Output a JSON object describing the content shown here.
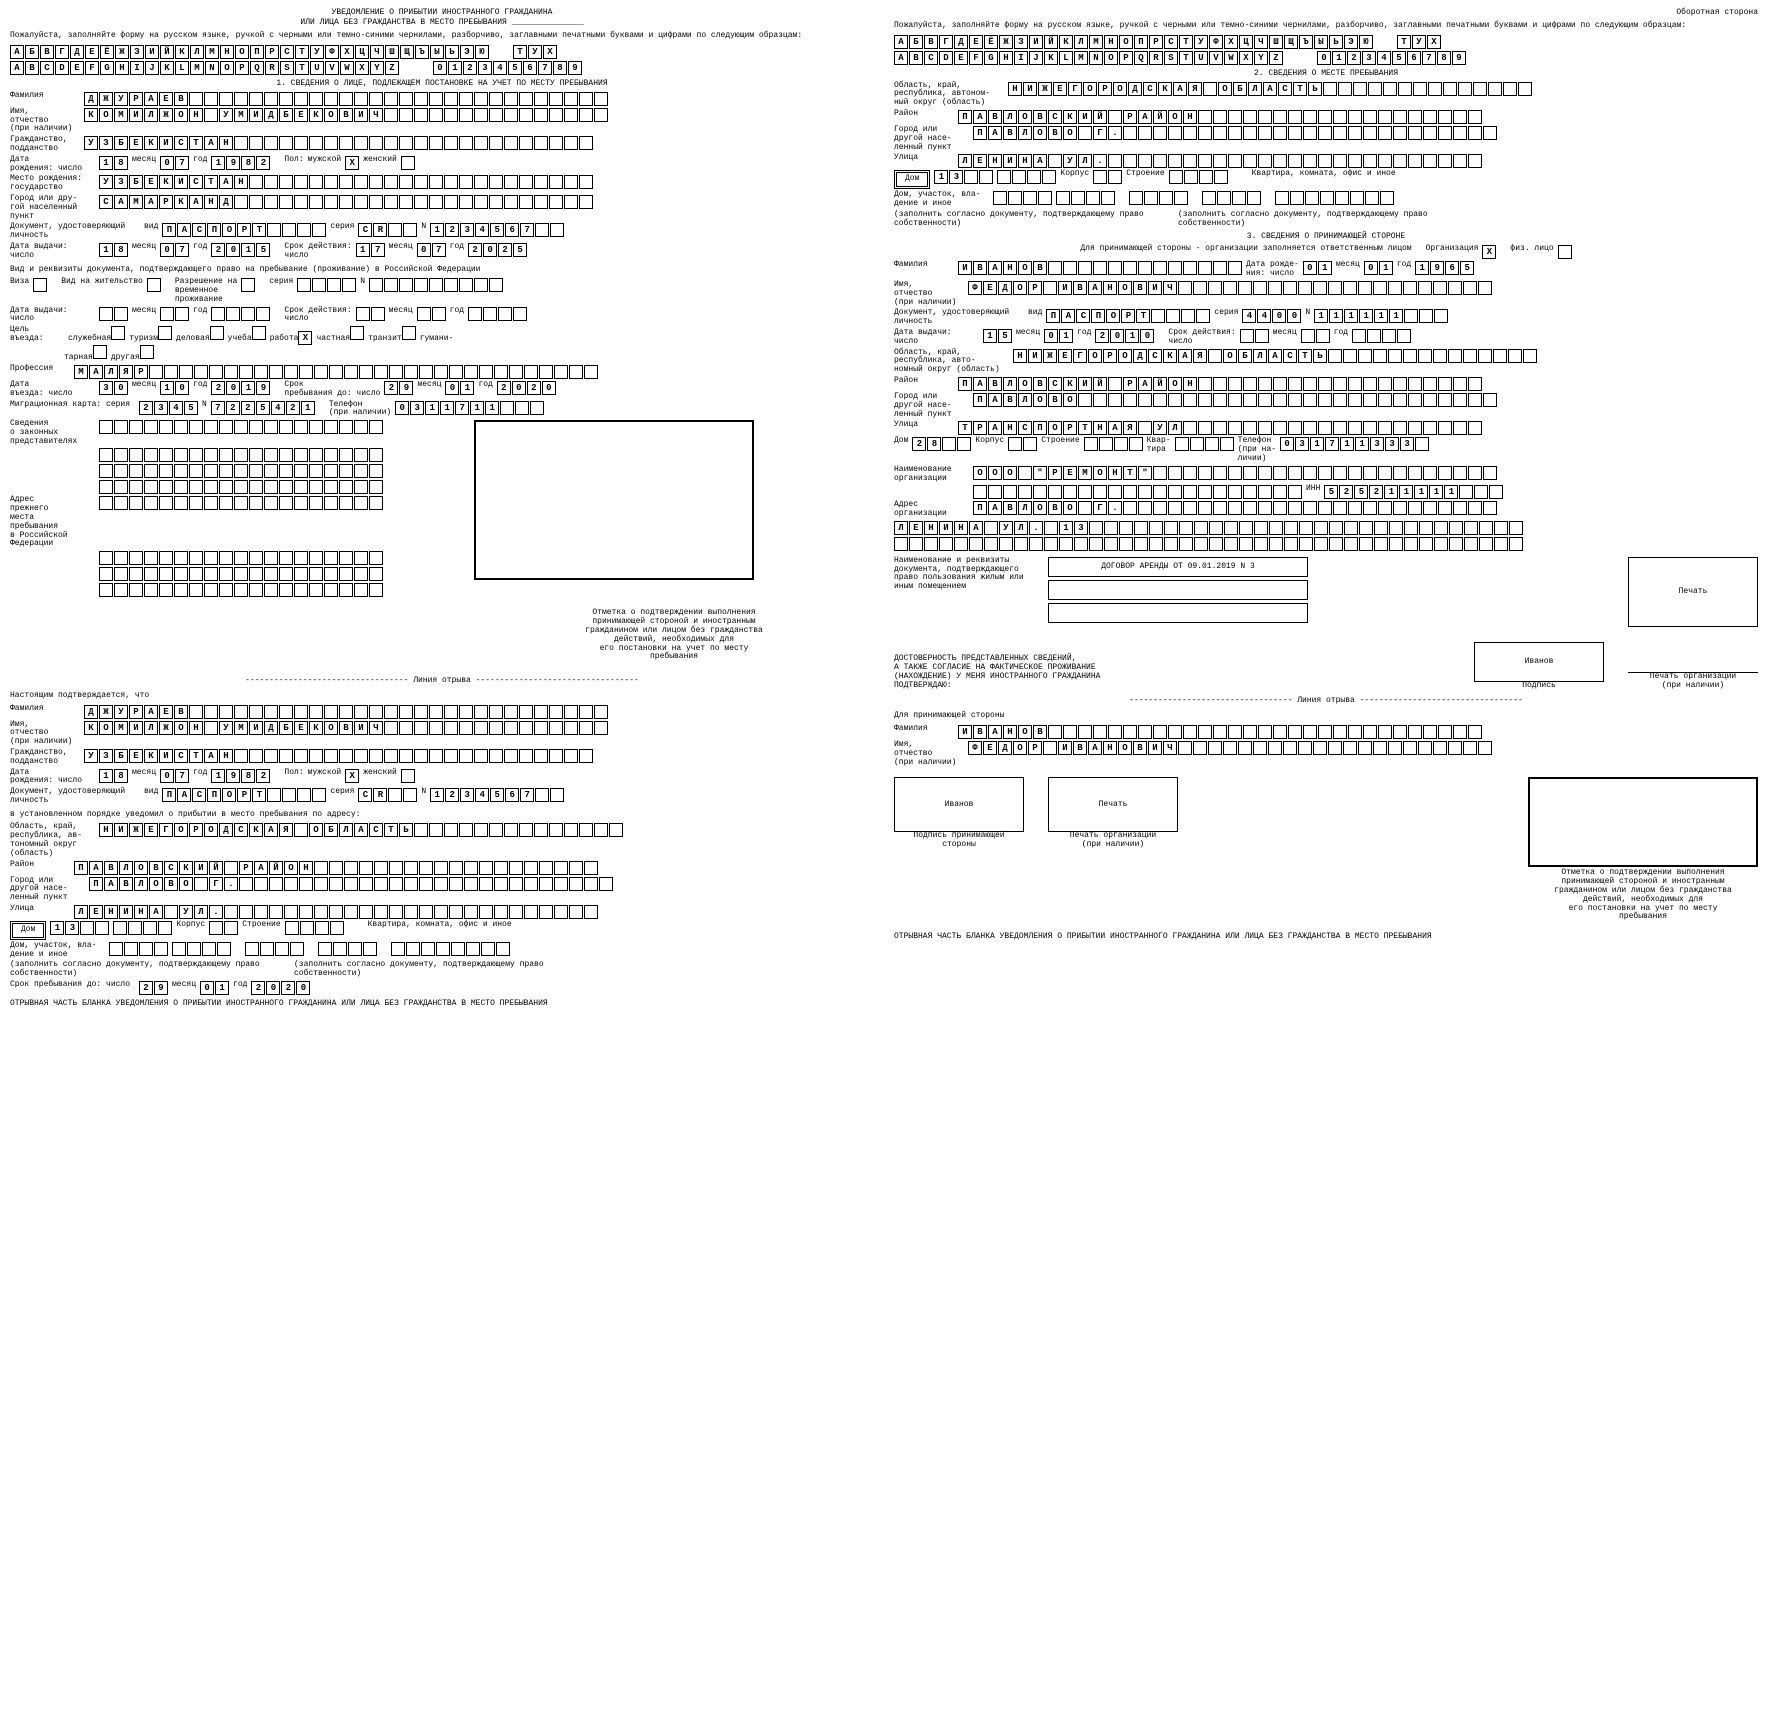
{
  "doc": {
    "title1": "УВЕДОМЛЕНИЕ О ПРИБЫТИИ ИНОСТРАННОГО ГРАЖДАНИНА",
    "title2": "ИЛИ ЛИЦА БЕЗ ГРАЖДАНСТВА В МЕСТО ПРЕБЫВАНИЯ",
    "back_side": "Оборотная сторона",
    "instructions": "Пожалуйста, заполняйте форму на русском языке, ручкой с черными или темно-синими чернилами, разборчиво, заглавными печатными буквами и цифрами по следующим образцам:",
    "sample_ru": "АБВГДЕЁЖЗИЙКЛМНОПРСТУФХЦЧШЩЪЫЬЭЮЯ",
    "sample_en_gap": "ТУХ",
    "sample_en": "ABCDEFGHIJKLMNOPQRSTUVWXYZ",
    "sample_num": "0123456789",
    "section1": "1. СВЕДЕНИЯ О ЛИЦЕ, ПОДЛЕЖАЩЕМ ПОСТАНОВКЕ НА УЧЕТ ПО МЕСТУ ПРЕБЫВАНИЯ",
    "section2": "2. СВЕДЕНИЯ О МЕСТЕ ПРЕБЫВАНИЯ",
    "section3": "3. СВЕДЕНИЯ О ПРИНИМАЮЩЕЙ СТОРОНЕ",
    "labels": {
      "surname": "Фамилия",
      "name": "Имя,\nотчество\n(при наличии)",
      "citizenship": "Гражданство,\nподданство",
      "dob": "Дата\nрождения: число",
      "month": "месяц",
      "year": "год",
      "sex": "Пол:",
      "male": "мужской",
      "female": "женский",
      "birthplace": "Место рождения:\nгосударство",
      "city_other": "Город или дру-\nгой населенный\nпункт",
      "doc_id": "Документ, удостоверяющий\nличность",
      "kind": "вид",
      "series": "серия",
      "num": "N",
      "issue_date": "Дата выдачи:\nчисло",
      "valid_until": "Срок действия:\nчисло",
      "visa_doc": "Вид и реквизиты документа, подтверждающего право на пребывание (проживание) в Российской Федерации",
      "visa": "Виза",
      "residence": "Вид на жительство",
      "temp_residence": "Разрешение на\nвременное\nпроживание",
      "purpose": "Цель\nвъезда:",
      "purposes": [
        "служебная",
        "туризм",
        "деловая",
        "учеба",
        "работа",
        "частная",
        "транзит",
        "гумани-\nтарная",
        "другая"
      ],
      "profession": "Профессия",
      "entry_date": "Дата\nвъезда:   число",
      "stay_until": "Срок\nпребывания до: число",
      "migr_card": "Миграционная карта: серия",
      "phone": "Телефон\n(при наличии)",
      "legal_reps": "Сведения\nо законных\nпредставителях",
      "prev_addr": "Адрес\nпрежнего\nместа\nпребывания\nв Российской\nФедерации",
      "mark_note": "Отметка о подтверждении выполнения\nпринимающей стороной и иностранным\nгражданином или лицом без гражданства\nдействий, необходимых для\nего постановки на учет по месту\nпребывания",
      "tear": " Линия отрыва ",
      "confirm": "Настоящим подтверждается, что",
      "notified": "в установленном порядке уведомил о прибытии в место пребывания по адресу:",
      "region": "Область, край,\nреспублика, ав-\nтономный округ\n(область)",
      "region2": "Область, край,\nреспублика, автоном-\nный округ (область)",
      "district": "Район",
      "city": "Город или\nдругой насе-\nленный пункт",
      "street": "Улица",
      "house": "Дом",
      "corpus": "Корпус",
      "building": "Строение",
      "flat_etc": "Квартира, комната, офис и иное",
      "house_plot": "Дом, участок, вла-\nдение и иное",
      "fill_doc1": "(заполнить согласно документу, подтверждающему право\nсобственности)",
      "fill_doc2": "(заполнить согласно документу, подтверждающему право\nсобственности)",
      "host_org": "Для принимающей стороны - организации заполняется ответственным лицом",
      "org": "Организация",
      "phys": "физ. лицо",
      "dob_short": "Дата рожде-\nния:  число",
      "region3": "Область, край,\nреспублика, авто-\nномный округ (область)",
      "flat": "Квар-\nтира",
      "phone2": "Телефон\n(при на-\nличии)",
      "org_name": "Наименование\nорганизации",
      "inn": "ИНН",
      "org_addr": "Адрес\nорганизации",
      "doc_basis": "Наименование и реквизиты\nдокумента, подтверждающего\nправо пользования жилым или\nиным помещением",
      "stamp": "Печать",
      "reliability": "ДОСТОВЕРНОСТЬ ПРЕДСТАВЛЕННЫХ СВЕДЕНИЙ,\nА ТАКЖЕ СОГЛАСИЕ НА ФАКТИЧЕСКОЕ ПРОЖИВАНИЕ\n(НАХОЖДЕНИЕ) У МЕНЯ ИНОСТРАННОГО ГРАЖДАНИНА\nПОДТВЕРЖДАЮ:",
      "signature": "Подпись",
      "org_stamp": "Печать организации\n(при наличии)",
      "for_host": "Для принимающей стороны",
      "sig_host": "Подпись принимающей\nстороны",
      "stay_until2": "Срок пребывания до: число",
      "tearoff_footer": "ОТРЫВНАЯ ЧАСТЬ БЛАНКА УВЕДОМЛЕНИЯ О ПРИБЫТИИ ИНОСТРАННОГО ГРАЖДАНИНА ИЛИ ЛИЦА БЕЗ ГРАЖДАНСТВА В МЕСТО ПРЕБЫВАНИЯ"
    }
  },
  "person": {
    "surname": "ДЖУРАЕВ",
    "name": "КОМИЛЖОН УМИДБЕКОВИЧ",
    "citizenship": "УЗБЕКИСТАН",
    "dob_day": "18",
    "dob_month": "07",
    "dob_year": "1982",
    "sex": "М",
    "birth_country": "УЗБЕКИСТАН",
    "birth_city": "САМАРКАНД",
    "doc_kind": "ПАСПОРТ",
    "doc_series": "СR",
    "doc_num": "1234567",
    "issue_day": "18",
    "issue_month": "07",
    "issue_year": "2015",
    "valid_day": "17",
    "valid_month": "07",
    "valid_year": "2025",
    "purpose_idx": 4,
    "profession": "МАЛЯР",
    "entry_day": "30",
    "entry_month": "10",
    "entry_year": "2019",
    "stay_day": "29",
    "stay_month": "01",
    "stay_year": "2020",
    "migr_series": "2345",
    "migr_num": "7225421",
    "phone": "0311711"
  },
  "address": {
    "region": "НИЖЕГОРОДСКАЯ ОБЛАСТЬ",
    "district": "ПАВЛОВСКИЙ РАЙОН",
    "city": "ПАВЛОВО Г.",
    "street": "ЛЕНИНА УЛ.",
    "house": "13"
  },
  "host": {
    "is_org": true,
    "surname": "ИВАНОВ",
    "name": "ФЕДОР ИВАНОВИЧ",
    "dob_day": "01",
    "dob_month": "01",
    "dob_year": "1965",
    "doc_kind": "ПАСПОРТ",
    "doc_series": "4400",
    "doc_num": "111111",
    "issue_day": "15",
    "issue_month": "01",
    "issue_year": "2010",
    "region": "НИЖЕГОРОДСКАЯ ОБЛАСТЬ",
    "district": "ПАВЛОВСКИЙ РАЙОН",
    "city": "ПАВЛОВО",
    "street": "ТРАНСПОРТНАЯ УЛ",
    "house": "28",
    "phone": "031711333",
    "org_name": "ООО \"РЕМОНТ\"",
    "inn": "525211111",
    "org_addr1": "ПАВЛОВО Г.",
    "org_addr2": "ЛЕНИНА УЛ. 13",
    "basis_doc": "ДОГОВОР АРЕНДЫ ОТ 09.01.2019 N 3",
    "signature": "Иванов"
  }
}
